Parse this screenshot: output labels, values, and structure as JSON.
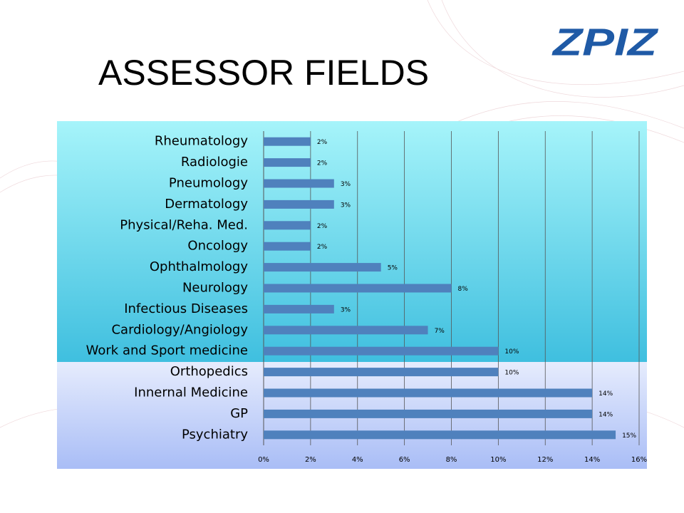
{
  "title": "ASSESSOR FIELDS",
  "logo": "ZPIZ",
  "chart_data": {
    "type": "bar",
    "orientation": "horizontal",
    "categories": [
      "Rheumatology",
      "Radiologie",
      "Pneumology",
      "Dermatology",
      "Physical/Reha. Med.",
      "Oncology",
      "Ophthalmology",
      "Neurology",
      "Infectious Diseases",
      "Cardiology/Angiology",
      "Work and Sport medicine",
      "Orthopedics",
      "Innernal Medicine",
      "GP",
      "Psychiatry"
    ],
    "values": [
      2,
      2,
      3,
      3,
      2,
      2,
      5,
      8,
      3,
      7,
      10,
      10,
      14,
      14,
      15
    ],
    "value_labels": [
      "2%",
      "2%",
      "3%",
      "3%",
      "2%",
      "2%",
      "5%",
      "8%",
      "3%",
      "7%",
      "10%",
      "10%",
      "14%",
      "14%",
      "15%"
    ],
    "color": "#4f81bd",
    "xlim": [
      0,
      16
    ],
    "xticks": [
      {
        "value": 0,
        "label": "0%"
      },
      {
        "value": 2,
        "label": "2%"
      },
      {
        "value": 4,
        "label": "4%"
      },
      {
        "value": 6,
        "label": "6%"
      },
      {
        "value": 8,
        "label": "8%"
      },
      {
        "value": 10,
        "label": "10%"
      },
      {
        "value": 12,
        "label": "12%"
      },
      {
        "value": 14,
        "label": "14%"
      },
      {
        "value": 16,
        "label": "16%"
      }
    ],
    "grid": true
  }
}
